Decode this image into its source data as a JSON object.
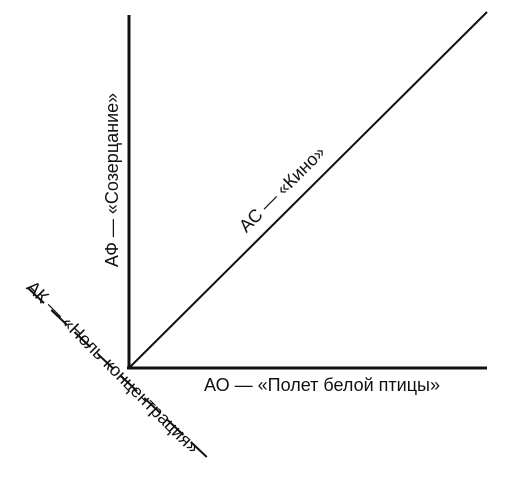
{
  "axes": {
    "vertical": {
      "label": "АФ — «Созерцание»"
    },
    "diagonal": {
      "label": "АС — «Кино»"
    },
    "horizontal": {
      "label": "АО — «Полет белой птицы»"
    },
    "dashed": {
      "label": "АК — «Ноль-концентрация»"
    }
  }
}
